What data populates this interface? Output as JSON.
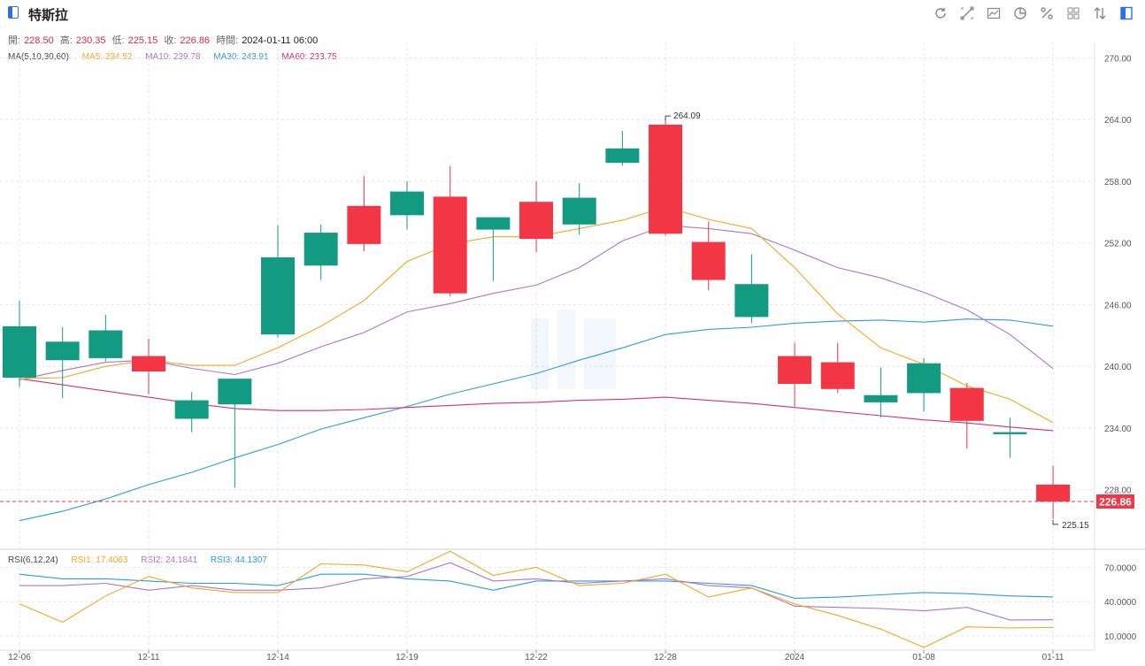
{
  "header": {
    "title": "特斯拉",
    "tools": [
      "refresh-icon",
      "drawing-icon",
      "compare-icon",
      "pie-icon",
      "percent-icon",
      "grid-icon",
      "sort-icon",
      "layout-icon"
    ]
  },
  "ohlc": {
    "open_label": "開:",
    "open": "228.50",
    "high_label": "高:",
    "high": "230.35",
    "low_label": "低:",
    "low": "225.15",
    "close_label": "收:",
    "close": "226.86",
    "time_label": "時間:",
    "time": "2024-01-11 06:00"
  },
  "ma_legend": {
    "name": "MA(5,10,30,60)",
    "ma5": "MA5: 234.52",
    "ma10": "MA10: 239.78",
    "ma30": "MA30: 243.91",
    "ma60": "MA60: 233.75"
  },
  "rsi_legend": {
    "name": "RSI(6,12,24)",
    "rsi1": "RSI1: 17.4063",
    "rsi2": "RSI2: 24.1841",
    "rsi3": "RSI3: 44.1307"
  },
  "colors": {
    "up": "#139b81",
    "down": "#f23645",
    "ma5": "#f5a623",
    "ma10": "#a877c9",
    "ma30": "#2d9be0",
    "ma60": "#d6336c",
    "grid": "#e6e6e6"
  },
  "chart_data": {
    "type": "candlestick",
    "x_tick_labels": [
      "12-06",
      "12-11",
      "12-14",
      "12-19",
      "12-22",
      "12-28",
      "2024",
      "01-08",
      "01-11"
    ],
    "x_tick_index": [
      0,
      3,
      6,
      9,
      12,
      15,
      18,
      21,
      24
    ],
    "y_ticks": [
      "270.00",
      "264.00",
      "258.00",
      "252.00",
      "246.00",
      "240.00",
      "234.00",
      "228.00"
    ],
    "ylim": [
      222.3,
      271.5
    ],
    "candles": [
      {
        "o": 238.9,
        "h": 246.4,
        "l": 238.0,
        "c": 243.9
      },
      {
        "o": 240.6,
        "h": 243.8,
        "l": 236.9,
        "c": 242.4
      },
      {
        "o": 240.8,
        "h": 245.0,
        "l": 240.5,
        "c": 243.5
      },
      {
        "o": 241.0,
        "h": 242.7,
        "l": 237.3,
        "c": 239.5
      },
      {
        "o": 234.9,
        "h": 237.5,
        "l": 233.6,
        "c": 236.7
      },
      {
        "o": 236.3,
        "h": 238.6,
        "l": 228.2,
        "c": 238.8
      },
      {
        "o": 243.1,
        "h": 253.7,
        "l": 242.8,
        "c": 250.6
      },
      {
        "o": 249.8,
        "h": 253.8,
        "l": 248.4,
        "c": 253.0
      },
      {
        "o": 255.6,
        "h": 258.5,
        "l": 251.2,
        "c": 251.9
      },
      {
        "o": 254.7,
        "h": 258.0,
        "l": 253.3,
        "c": 257.0
      },
      {
        "o": 256.5,
        "h": 259.5,
        "l": 246.8,
        "c": 247.1
      },
      {
        "o": 253.3,
        "h": 254.4,
        "l": 248.3,
        "c": 254.5
      },
      {
        "o": 256.0,
        "h": 258.0,
        "l": 251.1,
        "c": 252.4
      },
      {
        "o": 253.8,
        "h": 257.8,
        "l": 252.8,
        "c": 256.4
      },
      {
        "o": 259.8,
        "h": 262.9,
        "l": 259.5,
        "c": 261.2
      },
      {
        "o": 263.5,
        "h": 264.09,
        "l": 252.7,
        "c": 252.9
      },
      {
        "o": 252.1,
        "h": 254.1,
        "l": 247.4,
        "c": 248.4
      },
      {
        "o": 244.8,
        "h": 250.9,
        "l": 244.2,
        "c": 248.0
      },
      {
        "o": 241.0,
        "h": 242.3,
        "l": 236.1,
        "c": 238.3
      },
      {
        "o": 240.4,
        "h": 242.3,
        "l": 237.4,
        "c": 237.8
      },
      {
        "o": 236.5,
        "h": 239.9,
        "l": 235.0,
        "c": 237.2
      },
      {
        "o": 237.4,
        "h": 240.8,
        "l": 235.6,
        "c": 240.3
      },
      {
        "o": 237.9,
        "h": 238.4,
        "l": 232.0,
        "c": 234.7
      },
      {
        "o": 233.4,
        "h": 235.0,
        "l": 231.1,
        "c": 233.6
      },
      {
        "o": 228.5,
        "h": 230.35,
        "l": 225.15,
        "c": 226.86
      }
    ],
    "ma5": [
      238.8,
      238.9,
      240.0,
      240.6,
      240.1,
      240.1,
      241.8,
      243.9,
      246.4,
      250.2,
      251.9,
      252.6,
      252.6,
      253.4,
      254.2,
      255.5,
      254.3,
      253.4,
      249.6,
      245.1,
      241.8,
      240.2,
      238.1,
      236.8,
      234.52
    ],
    "ma10": [
      238.7,
      239.6,
      240.4,
      240.6,
      239.8,
      239.2,
      240.3,
      241.9,
      243.3,
      245.3,
      246.1,
      247.1,
      247.9,
      249.6,
      252.2,
      253.7,
      253.4,
      252.9,
      251.3,
      249.6,
      248.6,
      247.2,
      245.5,
      243.1,
      239.78
    ],
    "ma30": [
      225.0,
      225.9,
      227.1,
      228.5,
      229.7,
      231.1,
      232.4,
      233.9,
      235.0,
      236.1,
      237.3,
      238.3,
      239.3,
      240.6,
      241.8,
      243.1,
      243.6,
      243.8,
      244.2,
      244.4,
      244.5,
      244.3,
      244.6,
      244.5,
      243.91
    ],
    "ma60": [
      238.8,
      238.2,
      237.6,
      237.0,
      236.4,
      235.9,
      235.7,
      235.7,
      235.8,
      236.0,
      236.2,
      236.4,
      236.5,
      236.7,
      236.8,
      237.0,
      236.7,
      236.4,
      236.0,
      235.6,
      235.2,
      234.8,
      234.5,
      234.1,
      233.75
    ],
    "last_price": "226.86",
    "high_mark": "264.09",
    "low_mark": "225.15",
    "rsi": {
      "ylim": [
        0,
        85
      ],
      "y_ticks": [
        "70.0000",
        "40.0000",
        "10.0000"
      ],
      "rsi1": [
        38,
        22,
        45,
        62,
        52,
        48,
        48,
        73,
        72,
        66,
        84,
        63,
        70,
        54,
        56,
        64,
        44,
        52,
        38,
        28,
        16,
        0,
        18,
        17,
        17.4
      ],
      "rsi2": [
        54,
        54,
        56,
        50,
        54,
        50,
        50,
        52,
        60,
        62,
        74,
        58,
        60,
        56,
        58,
        60,
        54,
        52,
        36,
        35,
        34,
        32,
        35,
        24,
        24.2
      ],
      "rsi3": [
        64,
        60,
        60,
        58,
        56,
        56,
        54,
        64,
        64,
        60,
        58,
        50,
        58,
        58,
        58,
        58,
        56,
        54,
        43,
        44,
        46,
        48,
        47,
        45,
        44.1
      ]
    }
  }
}
